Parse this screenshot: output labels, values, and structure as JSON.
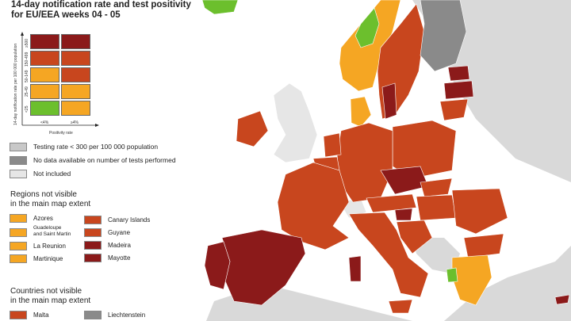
{
  "title": {
    "line1": "14-day notification rate and test positivity",
    "line2": "for EU/EEA weeks 04 - 05"
  },
  "matrix": {
    "y_axis_label": "14-day notification rate per 100 000 population",
    "x_axis_label": "Positivity rate",
    "row_labels": [
      "≥500",
      "150-499",
      "50-149",
      "25-49",
      "<25"
    ],
    "col_labels": [
      "<4%",
      "≥4%"
    ],
    "colors": [
      [
        "#8b1a1a",
        "#8b1a1a"
      ],
      [
        "#c8461e",
        "#c8461e"
      ],
      [
        "#f5a623",
        "#c8461e"
      ],
      [
        "#f5a623",
        "#f5a623"
      ],
      [
        "#6cbf2d",
        "#f5a623"
      ]
    ]
  },
  "legend": {
    "items": [
      {
        "label": "Testing rate < 300 per 100 000 population",
        "color": "#c8c8c8"
      },
      {
        "label": "No data available on number of tests performed",
        "color": "#8a8a8a"
      },
      {
        "label": "Not included",
        "color": "#e6e6e6"
      }
    ]
  },
  "regions": {
    "heading_line1": "Regions not visible",
    "heading_line2": "in the main map extent",
    "left": [
      {
        "label": "Azores",
        "color": "#f5a623"
      },
      {
        "label": "Guadeloupe\nand Saint Martin",
        "color": "#f5a623"
      },
      {
        "label": "La Reunion",
        "color": "#f5a623"
      },
      {
        "label": "Martinique",
        "color": "#f5a623"
      }
    ],
    "right": [
      {
        "label": "Canary Islands",
        "color": "#c8461e"
      },
      {
        "label": "Guyane",
        "color": "#c8461e"
      },
      {
        "label": "Madeira",
        "color": "#8b1a1a"
      },
      {
        "label": "Mayotte",
        "color": "#8b1a1a"
      }
    ]
  },
  "countries": {
    "heading_line1": "Countries not visible",
    "heading_line2": "in the main map extent",
    "items": [
      {
        "label": "Malta",
        "color": "#c8461e"
      },
      {
        "label": "Liechtenstein",
        "color": "#8a8a8a"
      }
    ]
  },
  "map_colors": {
    "sea": "#ffffff",
    "non_eu": "#d9d9d9",
    "dark_red": "#8b1a1a",
    "red": "#c8461e",
    "orange": "#f5a623",
    "green": "#6cbf2d",
    "grey": "#8a8a8a"
  }
}
